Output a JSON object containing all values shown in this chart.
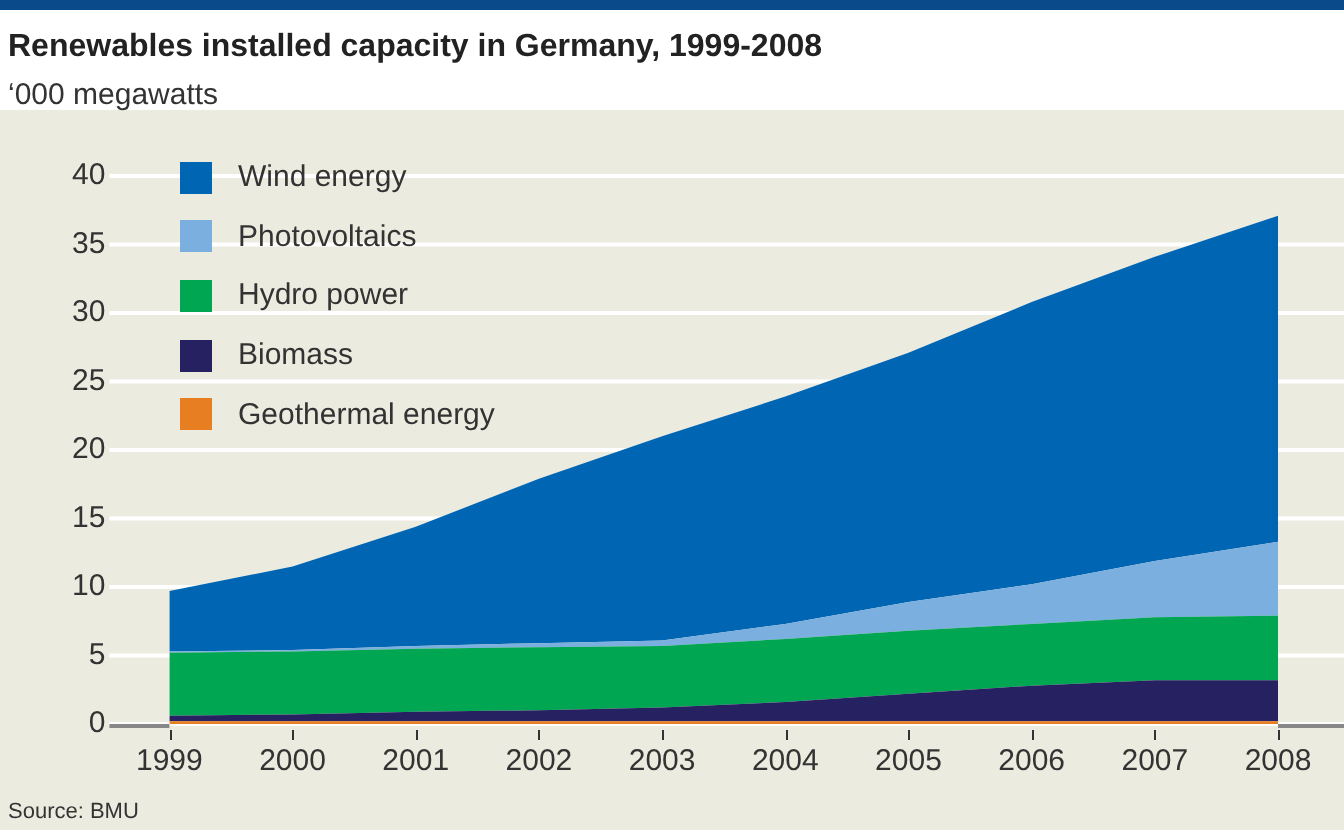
{
  "chart_data": {
    "type": "area",
    "stacked": true,
    "title": "Renewables installed capacity in Germany, 1999-2008",
    "subtitle": "‘000 megawatts",
    "categories": [
      "1999",
      "2000",
      "2001",
      "2002",
      "2003",
      "2004",
      "2005",
      "2006",
      "2007",
      "2008"
    ],
    "series": [
      {
        "name": "Geothermal energy",
        "color": "#e87e22",
        "values": [
          0.2,
          0.2,
          0.2,
          0.2,
          0.2,
          0.2,
          0.2,
          0.2,
          0.2,
          0.2
        ]
      },
      {
        "name": "Biomass",
        "color": "#262262",
        "values": [
          0.4,
          0.5,
          0.7,
          0.8,
          1.0,
          1.4,
          2.0,
          2.6,
          3.0,
          3.0
        ]
      },
      {
        "name": "Hydro power",
        "color": "#00a651",
        "values": [
          4.6,
          4.6,
          4.6,
          4.6,
          4.5,
          4.6,
          4.6,
          4.5,
          4.6,
          4.7
        ]
      },
      {
        "name": "Photovoltaics",
        "color": "#7aafdf",
        "values": [
          0.1,
          0.1,
          0.2,
          0.3,
          0.4,
          1.1,
          2.1,
          2.9,
          4.1,
          5.4
        ]
      },
      {
        "name": "Wind energy",
        "color": "#0066b3",
        "values": [
          4.4,
          6.1,
          8.7,
          12.0,
          14.9,
          16.6,
          18.2,
          20.6,
          22.2,
          23.8
        ]
      }
    ],
    "ylim": [
      0,
      40
    ],
    "yticks": [
      0,
      5,
      10,
      15,
      20,
      25,
      30,
      35,
      40
    ],
    "grid": "y",
    "legend": "top left",
    "annotations": [
      "Source: BMU"
    ]
  }
}
